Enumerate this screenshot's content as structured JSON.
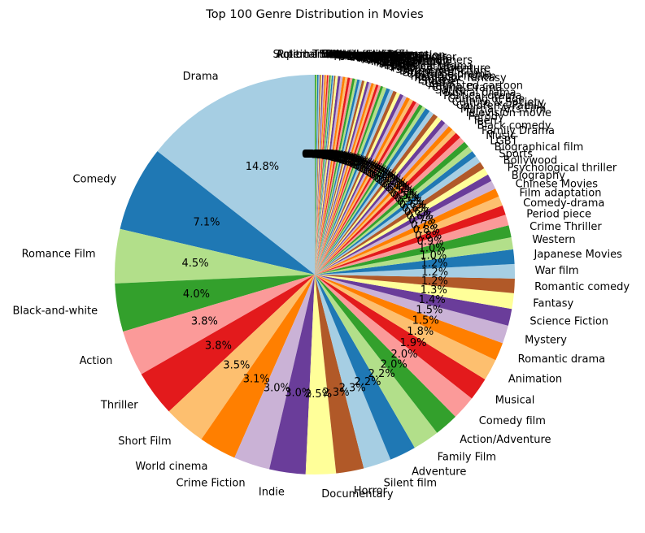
{
  "chart_data": {
    "type": "pie",
    "title": "Top 100 Genre Distribution in Movies",
    "start_angle_deg": 90,
    "direction": "counterclockwise",
    "legend": "none",
    "slices": [
      {
        "label": "Drama",
        "value": 14.8,
        "pct_label": "14.8%"
      },
      {
        "label": "Comedy",
        "value": 7.1,
        "pct_label": "7.1%"
      },
      {
        "label": "Romance Film",
        "value": 4.5,
        "pct_label": "4.5%"
      },
      {
        "label": "Black-and-white",
        "value": 4.0,
        "pct_label": "4.0%"
      },
      {
        "label": "Action",
        "value": 3.8,
        "pct_label": "3.8%"
      },
      {
        "label": "Thriller",
        "value": 3.8,
        "pct_label": "3.8%"
      },
      {
        "label": "Short Film",
        "value": 3.5,
        "pct_label": "3.5%"
      },
      {
        "label": "World cinema",
        "value": 3.1,
        "pct_label": "3.1%"
      },
      {
        "label": "Crime Fiction",
        "value": 3.0,
        "pct_label": "3.0%"
      },
      {
        "label": "Indie",
        "value": 3.0,
        "pct_label": "3.0%"
      },
      {
        "label": "Documentary",
        "value": 2.5,
        "pct_label": "2.5%"
      },
      {
        "label": "Horror",
        "value": 2.3,
        "pct_label": "2.3%"
      },
      {
        "label": "Silent film",
        "value": 2.3,
        "pct_label": "2.3%"
      },
      {
        "label": "Adventure",
        "value": 2.2,
        "pct_label": "2.2%"
      },
      {
        "label": "Family Film",
        "value": 2.2,
        "pct_label": "2.2%"
      },
      {
        "label": "Action/Adventure",
        "value": 2.0,
        "pct_label": "2.0%"
      },
      {
        "label": "Comedy film",
        "value": 2.0,
        "pct_label": "2.0%"
      },
      {
        "label": "Musical",
        "value": 1.9,
        "pct_label": "1.9%"
      },
      {
        "label": "Animation",
        "value": 1.8,
        "pct_label": "1.8%"
      },
      {
        "label": "Romantic drama",
        "value": 1.5,
        "pct_label": "1.5%"
      },
      {
        "label": "Mystery",
        "value": 1.5,
        "pct_label": "1.5%"
      },
      {
        "label": "Science Fiction",
        "value": 1.4,
        "pct_label": "1.4%"
      },
      {
        "label": "Fantasy",
        "value": 1.3,
        "pct_label": "1.3%"
      },
      {
        "label": "Romantic comedy",
        "value": 1.2,
        "pct_label": "1.2%"
      },
      {
        "label": "War film",
        "value": 1.2,
        "pct_label": "1.2%"
      },
      {
        "label": "Japanese Movies",
        "value": 1.2,
        "pct_label": "1.2%"
      },
      {
        "label": "Western",
        "value": 1.0,
        "pct_label": "1.0%"
      },
      {
        "label": "Crime Thriller",
        "value": 1.0,
        "pct_label": "1.0%"
      },
      {
        "label": "Period piece",
        "value": 0.9,
        "pct_label": "0.9%"
      },
      {
        "label": "Comedy-drama",
        "value": 0.8,
        "pct_label": "0.8%"
      },
      {
        "label": "Film adaptation",
        "value": 0.8,
        "pct_label": "0.8%"
      },
      {
        "label": "Chinese Movies",
        "value": 0.7,
        "pct_label": "0.7%"
      },
      {
        "label": "Biography",
        "value": 0.7,
        "pct_label": "0.7%"
      },
      {
        "label": "Psychological thriller",
        "value": 0.6,
        "pct_label": "0.6%"
      },
      {
        "label": "Bollywood",
        "value": 0.6,
        "pct_label": "0.6%"
      },
      {
        "label": "Sports",
        "value": 0.6,
        "pct_label": "0.6%"
      },
      {
        "label": "Biographical film",
        "value": 0.6,
        "pct_label": "0.6%"
      },
      {
        "label": "LGBT",
        "value": 0.5,
        "pct_label": "0.5%"
      },
      {
        "label": "Music",
        "value": 0.5,
        "pct_label": "0.5%"
      },
      {
        "label": "Family Drama",
        "value": 0.5,
        "pct_label": "0.5%"
      },
      {
        "label": "Black comedy",
        "value": 0.5,
        "pct_label": "0.5%"
      },
      {
        "label": "Teen",
        "value": 0.5,
        "pct_label": "0.5%"
      },
      {
        "label": "Parody",
        "value": 0.4,
        "pct_label": "0.4%"
      },
      {
        "label": "Television movie",
        "value": 0.4,
        "pct_label": "0.4%"
      },
      {
        "label": "Martial Arts Film",
        "value": 0.4,
        "pct_label": "0.4%"
      },
      {
        "label": "Children's/Family",
        "value": 0.4,
        "pct_label": "0.4%"
      },
      {
        "label": "Culture & Society",
        "value": 0.4,
        "pct_label": "0.4%"
      },
      {
        "label": "Coming of age",
        "value": 0.4,
        "pct_label": "0.4%"
      },
      {
        "label": "Political drama",
        "value": 0.4,
        "pct_label": "0.4%"
      },
      {
        "label": "Musical drama",
        "value": 0.4,
        "pct_label": "0.4%"
      },
      {
        "label": "Satire",
        "value": 0.3,
        "pct_label": "0.3%"
      },
      {
        "label": "Crime Drama",
        "value": 0.3,
        "pct_label": "0.3%"
      },
      {
        "label": "Animated cartoon",
        "value": 0.3,
        "pct_label": "0.3%"
      },
      {
        "label": "Cult",
        "value": 0.3,
        "pct_label": "0.3%"
      },
      {
        "label": "Slasher",
        "value": 0.3,
        "pct_label": "0.3%"
      },
      {
        "label": "Erotica",
        "value": 0.3,
        "pct_label": "0.3%"
      },
      {
        "label": "Romantic fantasy",
        "value": 0.3,
        "pct_label": "0.3%"
      },
      {
        "label": "Historical fiction",
        "value": 0.3,
        "pct_label": "0.3%"
      },
      {
        "label": "Costume drama",
        "value": 0.3,
        "pct_label": "0.3%"
      },
      {
        "label": "Suspense",
        "value": 0.3,
        "pct_label": "0.3%"
      },
      {
        "label": "Detective fiction",
        "value": 0.3,
        "pct_label": "0.3%"
      },
      {
        "label": "Spy",
        "value": 0.3,
        "pct_label": "0.3%"
      },
      {
        "label": "Fantasy Adventure",
        "value": 0.3,
        "pct_label": "0.3%"
      },
      {
        "label": "Supernatural",
        "value": 0.2,
        "pct_label": "0.2%"
      },
      {
        "label": "Historical drama",
        "value": 0.2,
        "pct_label": "0.2%"
      },
      {
        "label": "Epic",
        "value": 0.2,
        "pct_label": "0.2%"
      },
      {
        "label": "Anime",
        "value": 0.2,
        "pct_label": "0.2%"
      },
      {
        "label": "Disaster",
        "value": 0.2,
        "pct_label": "0.2%"
      },
      {
        "label": "Remake",
        "value": 0.2,
        "pct_label": "0.2%"
      },
      {
        "label": "Monster movie",
        "value": 0.2,
        "pct_label": "0.2%"
      },
      {
        "label": "Melodrama",
        "value": 0.2,
        "pct_label": "0.2%"
      },
      {
        "label": "Action Comedy",
        "value": 0.2,
        "pct_label": "0.2%"
      },
      {
        "label": "Comedy of manners",
        "value": 0.2,
        "pct_label": "0.2%"
      },
      {
        "label": "Christmas movie",
        "value": 0.2,
        "pct_label": "0.2%"
      },
      {
        "label": "Film noir",
        "value": 0.2,
        "pct_label": "0.2%"
      },
      {
        "label": "Noir",
        "value": 0.2,
        "pct_label": "0.2%"
      },
      {
        "label": "Gangster Film",
        "value": 0.2,
        "pct_label": "0.2%"
      },
      {
        "label": "Mockumentary",
        "value": 0.2,
        "pct_label": "0.2%"
      },
      {
        "label": "Psychological horror",
        "value": 0.2,
        "pct_label": "0.2%"
      },
      {
        "label": "Zombie Film",
        "value": 0.2,
        "pct_label": "0.2%"
      },
      {
        "label": "Natural horror films",
        "value": 0.2,
        "pct_label": "0.2%"
      },
      {
        "label": "Road movie",
        "value": 0.2,
        "pct_label": "0.2%"
      },
      {
        "label": "Stop motion",
        "value": 0.2,
        "pct_label": "0.2%"
      },
      {
        "label": "Social issues",
        "value": 0.1,
        "pct_label": "0.1%"
      },
      {
        "label": "Computer Animation",
        "value": 0.1,
        "pct_label": "0.1%"
      },
      {
        "label": "Sex comedy",
        "value": 0.1,
        "pct_label": "0.1%"
      },
      {
        "label": "Gross out",
        "value": 0.1,
        "pct_label": "0.1%"
      },
      {
        "label": "Space western",
        "value": 0.1,
        "pct_label": "0.1%"
      },
      {
        "label": "Religious Film",
        "value": 0.1,
        "pct_label": "0.1%"
      },
      {
        "label": "Buddy film",
        "value": 0.1,
        "pct_label": "0.1%"
      },
      {
        "label": "Courtroom Drama",
        "value": 0.1,
        "pct_label": "0.1%"
      },
      {
        "label": "Prison film",
        "value": 0.1,
        "pct_label": "0.1%"
      },
      {
        "label": "Heist",
        "value": 0.1,
        "pct_label": "0.1%"
      },
      {
        "label": "Tragedy",
        "value": 0.1,
        "pct_label": "0.1%"
      },
      {
        "label": "Swashbuckler films",
        "value": 0.1,
        "pct_label": "0.1%"
      },
      {
        "label": "Experimental film",
        "value": 0.1,
        "pct_label": "0.1%"
      },
      {
        "label": "Sword and sorcery",
        "value": 0.1,
        "pct_label": "0.1%"
      },
      {
        "label": "Superhero movie",
        "value": 0.1,
        "pct_label": "0.1%"
      },
      {
        "label": "Political thriller",
        "value": 0.1,
        "pct_label": "0.1%"
      },
      {
        "label": "Action Thrillers",
        "value": 0.1,
        "pct_label": "0.1%"
      }
    ],
    "colors": [
      "#a6cee3",
      "#1f78b4",
      "#b2df8a",
      "#33a02c",
      "#fb9a99",
      "#e31a1c",
      "#fdbf6f",
      "#ff7f00",
      "#cab2d6",
      "#6a3d9a",
      "#ffff99",
      "#b15928"
    ]
  }
}
